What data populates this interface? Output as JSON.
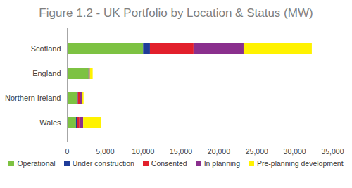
{
  "chart_data": {
    "type": "bar",
    "orientation": "horizontal",
    "stacked": true,
    "title": "Figure 1.2 - UK Portfolio by Location & Status (MW)",
    "categories": [
      "Scotland",
      "England",
      "Northern Ireland",
      "Wales"
    ],
    "series": [
      {
        "name": "Operational",
        "color": "#7dc242",
        "values": [
          10050,
          2850,
          1300,
          1200
        ]
      },
      {
        "name": "Under construction",
        "color": "#1f3c99",
        "values": [
          900,
          20,
          150,
          150
        ]
      },
      {
        "name": "Consented",
        "color": "#e2202c",
        "values": [
          5750,
          80,
          250,
          300
        ]
      },
      {
        "name": "In planning",
        "color": "#8a2f8d",
        "values": [
          6600,
          80,
          300,
          500
        ]
      },
      {
        "name": "Pre-planning development",
        "color": "#fff200",
        "values": [
          9000,
          370,
          200,
          2400
        ]
      }
    ],
    "xlim": [
      0,
      35000
    ],
    "xticks": [
      0,
      {
        "value": 5000,
        "label": "5,000"
      },
      {
        "value": 10000,
        "label": "10,000"
      },
      {
        "value": 15000,
        "label": "15,000"
      },
      {
        "value": 20000,
        "label": "20,000"
      },
      {
        "value": 25000,
        "label": "25,000"
      },
      {
        "value": 30000,
        "label": "30,000"
      },
      {
        "value": 35000,
        "label": "35,000"
      }
    ],
    "grid": false,
    "legend": "bottom"
  }
}
